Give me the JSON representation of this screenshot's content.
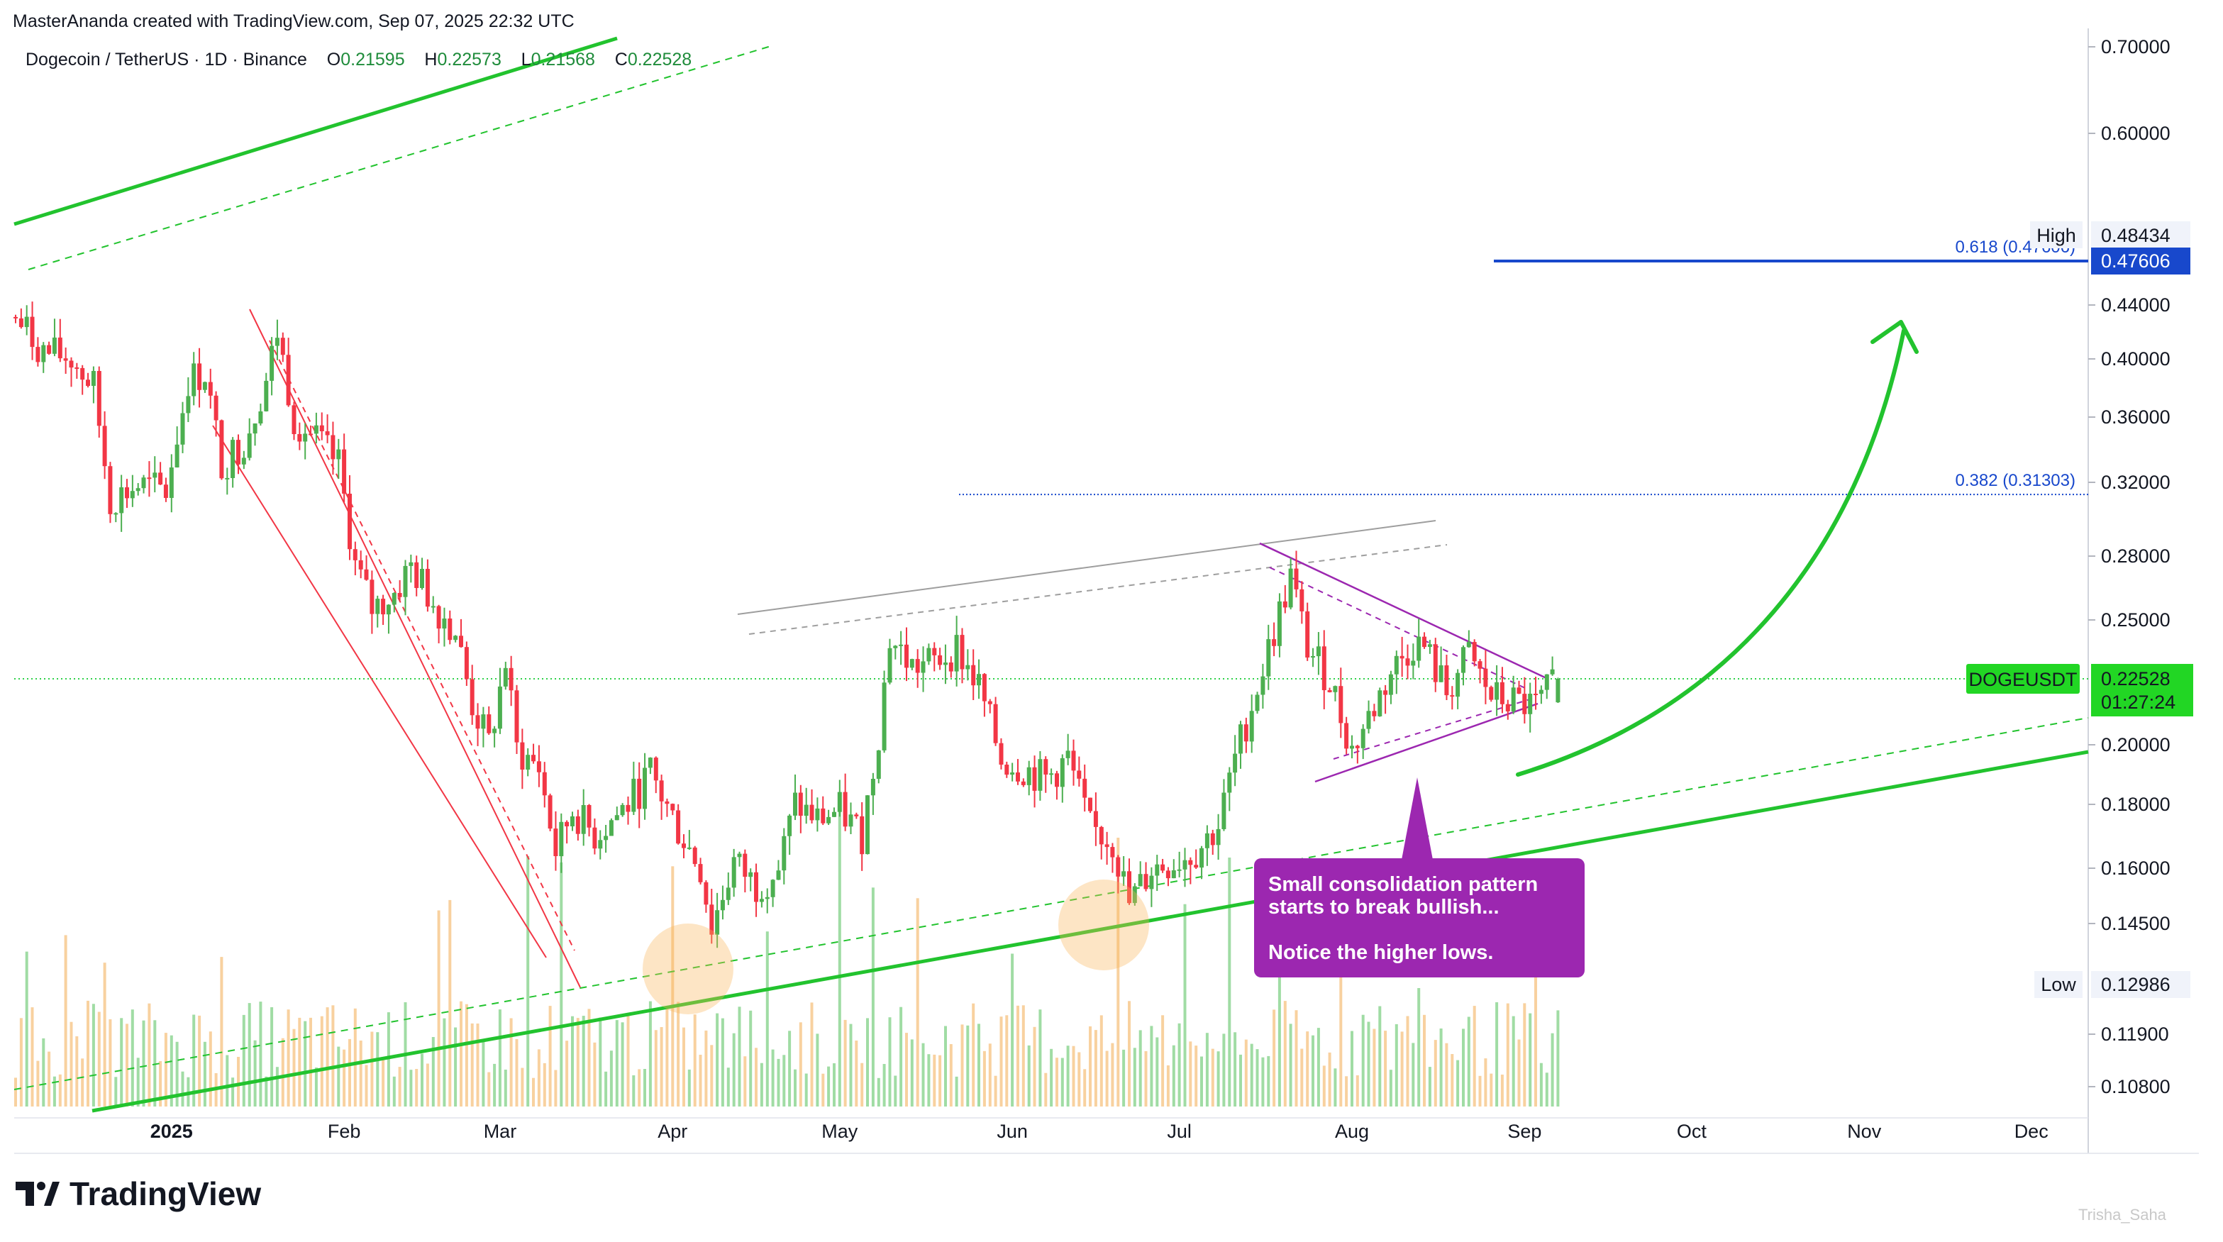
{
  "header": {
    "attribution": "MasterAnanda created with TradingView.com, Sep 07, 2025 22:32 UTC"
  },
  "symbol_bar": {
    "symbol": "Dogecoin / TetherUS · 1D · Binance",
    "open_label": "O",
    "open_value": "0.21595",
    "high_label": "H",
    "high_value": "0.22573",
    "low_label": "L",
    "low_value": "0.21568",
    "close_label": "C",
    "close_value": "0.22528"
  },
  "price_axis": {
    "labels": [
      "0.70000",
      "0.60000",
      "0.44000",
      "0.40000",
      "0.36000",
      "0.32000",
      "0.28000",
      "0.25000",
      "0.20000",
      "0.18000",
      "0.16000",
      "0.14500",
      "0.11900",
      "0.10800"
    ],
    "high_tag": "High",
    "high_value": "0.48434",
    "fib_price_tag": "0.47606",
    "current_symbol_tag": "DOGEUSDT",
    "current_price": "0.22528",
    "countdown": "01:27:24",
    "low_tag": "Low",
    "low_value": "0.12986"
  },
  "time_axis": {
    "labels": [
      "2025",
      "Feb",
      "Mar",
      "Apr",
      "May",
      "Jun",
      "Jul",
      "Aug",
      "Sep",
      "Oct",
      "Nov",
      "Dec"
    ]
  },
  "fib_levels": {
    "level_618": "0.618 (0.47606)",
    "level_382": "0.382 (0.31303)"
  },
  "annotation": {
    "line1": "Small consolidation pattern",
    "line2": "starts to break bullish...",
    "line3": "Notice the higher lows."
  },
  "branding": {
    "logo_text": "TradingView",
    "watermark": "Trisha_Saha"
  },
  "colors": {
    "up": "#26a69a",
    "candle_up": "#4caf50",
    "candle_down": "#f23645",
    "trend_green": "#22c32e",
    "channel_red": "#f23645",
    "triangle_purple": "#9c27b0",
    "fib_blue": "#1848cc",
    "price_tag_green": "#22d624"
  },
  "chart_data": {
    "type": "candlestick",
    "symbol": "DOGEUSDT",
    "interval": "1D",
    "exchange": "Binance",
    "x_range": [
      "2024-12-04",
      "2025-12-31"
    ],
    "y_scale": "log",
    "y_ticks": [
      0.108,
      0.119,
      0.145,
      0.16,
      0.18,
      0.2,
      0.25,
      0.28,
      0.32,
      0.36,
      0.4,
      0.44,
      0.6,
      0.7
    ],
    "close_path": [
      [
        "2024-12-04",
        0.43
      ],
      [
        "2024-12-09",
        0.405
      ],
      [
        "2024-12-14",
        0.4
      ],
      [
        "2024-12-18",
        0.38
      ],
      [
        "2024-12-21",
        0.31
      ],
      [
        "2024-12-26",
        0.318
      ],
      [
        "2024-12-31",
        0.315
      ],
      [
        "2025-01-04",
        0.385
      ],
      [
        "2025-01-07",
        0.39
      ],
      [
        "2025-01-10",
        0.33
      ],
      [
        "2025-01-14",
        0.345
      ],
      [
        "2025-01-18",
        0.385
      ],
      [
        "2025-01-20",
        0.42
      ],
      [
        "2025-01-23",
        0.36
      ],
      [
        "2025-01-27",
        0.345
      ],
      [
        "2025-01-31",
        0.33
      ],
      [
        "2025-02-03",
        0.275
      ],
      [
        "2025-02-06",
        0.255
      ],
      [
        "2025-02-10",
        0.262
      ],
      [
        "2025-02-13",
        0.275
      ],
      [
        "2025-02-17",
        0.258
      ],
      [
        "2025-02-21",
        0.245
      ],
      [
        "2025-02-24",
        0.215
      ],
      [
        "2025-02-27",
        0.2
      ],
      [
        "2025-03-02",
        0.232
      ],
      [
        "2025-03-04",
        0.198
      ],
      [
        "2025-03-08",
        0.192
      ],
      [
        "2025-03-11",
        0.165
      ],
      [
        "2025-03-14",
        0.178
      ],
      [
        "2025-03-18",
        0.17
      ],
      [
        "2025-03-24",
        0.18
      ],
      [
        "2025-03-28",
        0.19
      ],
      [
        "2025-04-02",
        0.172
      ],
      [
        "2025-04-06",
        0.16
      ],
      [
        "2025-04-08",
        0.144
      ],
      [
        "2025-04-12",
        0.162
      ],
      [
        "2025-04-16",
        0.155
      ],
      [
        "2025-04-20",
        0.16
      ],
      [
        "2025-04-23",
        0.18
      ],
      [
        "2025-04-27",
        0.175
      ],
      [
        "2025-05-01",
        0.178
      ],
      [
        "2025-05-05",
        0.17
      ],
      [
        "2025-05-08",
        0.205
      ],
      [
        "2025-05-10",
        0.242
      ],
      [
        "2025-05-14",
        0.23
      ],
      [
        "2025-05-18",
        0.232
      ],
      [
        "2025-05-22",
        0.238
      ],
      [
        "2025-05-26",
        0.222
      ],
      [
        "2025-05-30",
        0.195
      ],
      [
        "2025-06-03",
        0.192
      ],
      [
        "2025-06-07",
        0.188
      ],
      [
        "2025-06-11",
        0.195
      ],
      [
        "2025-06-15",
        0.172
      ],
      [
        "2025-06-19",
        0.168
      ],
      [
        "2025-06-22",
        0.15
      ],
      [
        "2025-06-26",
        0.16
      ],
      [
        "2025-06-30",
        0.162
      ],
      [
        "2025-07-04",
        0.165
      ],
      [
        "2025-07-08",
        0.173
      ],
      [
        "2025-07-11",
        0.195
      ],
      [
        "2025-07-14",
        0.215
      ],
      [
        "2025-07-18",
        0.245
      ],
      [
        "2025-07-21",
        0.27
      ],
      [
        "2025-07-24",
        0.238
      ],
      [
        "2025-07-28",
        0.225
      ],
      [
        "2025-08-01",
        0.198
      ],
      [
        "2025-08-04",
        0.21
      ],
      [
        "2025-08-08",
        0.228
      ],
      [
        "2025-08-12",
        0.24
      ],
      [
        "2025-08-14",
        0.238
      ],
      [
        "2025-08-18",
        0.22
      ],
      [
        "2025-08-22",
        0.235
      ],
      [
        "2025-08-26",
        0.218
      ],
      [
        "2025-08-30",
        0.216
      ],
      [
        "2025-09-03",
        0.214
      ],
      [
        "2025-09-07",
        0.22528
      ]
    ],
    "last": {
      "open": 0.21595,
      "high": 0.22573,
      "low": 0.21568,
      "close": 0.22528
    },
    "period_high": 0.48434,
    "period_low": 0.12986,
    "fibonacci": [
      {
        "level": 0.618,
        "price": 0.47606
      },
      {
        "level": 0.382,
        "price": 0.31303
      }
    ],
    "current_price_line": 0.22528
  }
}
